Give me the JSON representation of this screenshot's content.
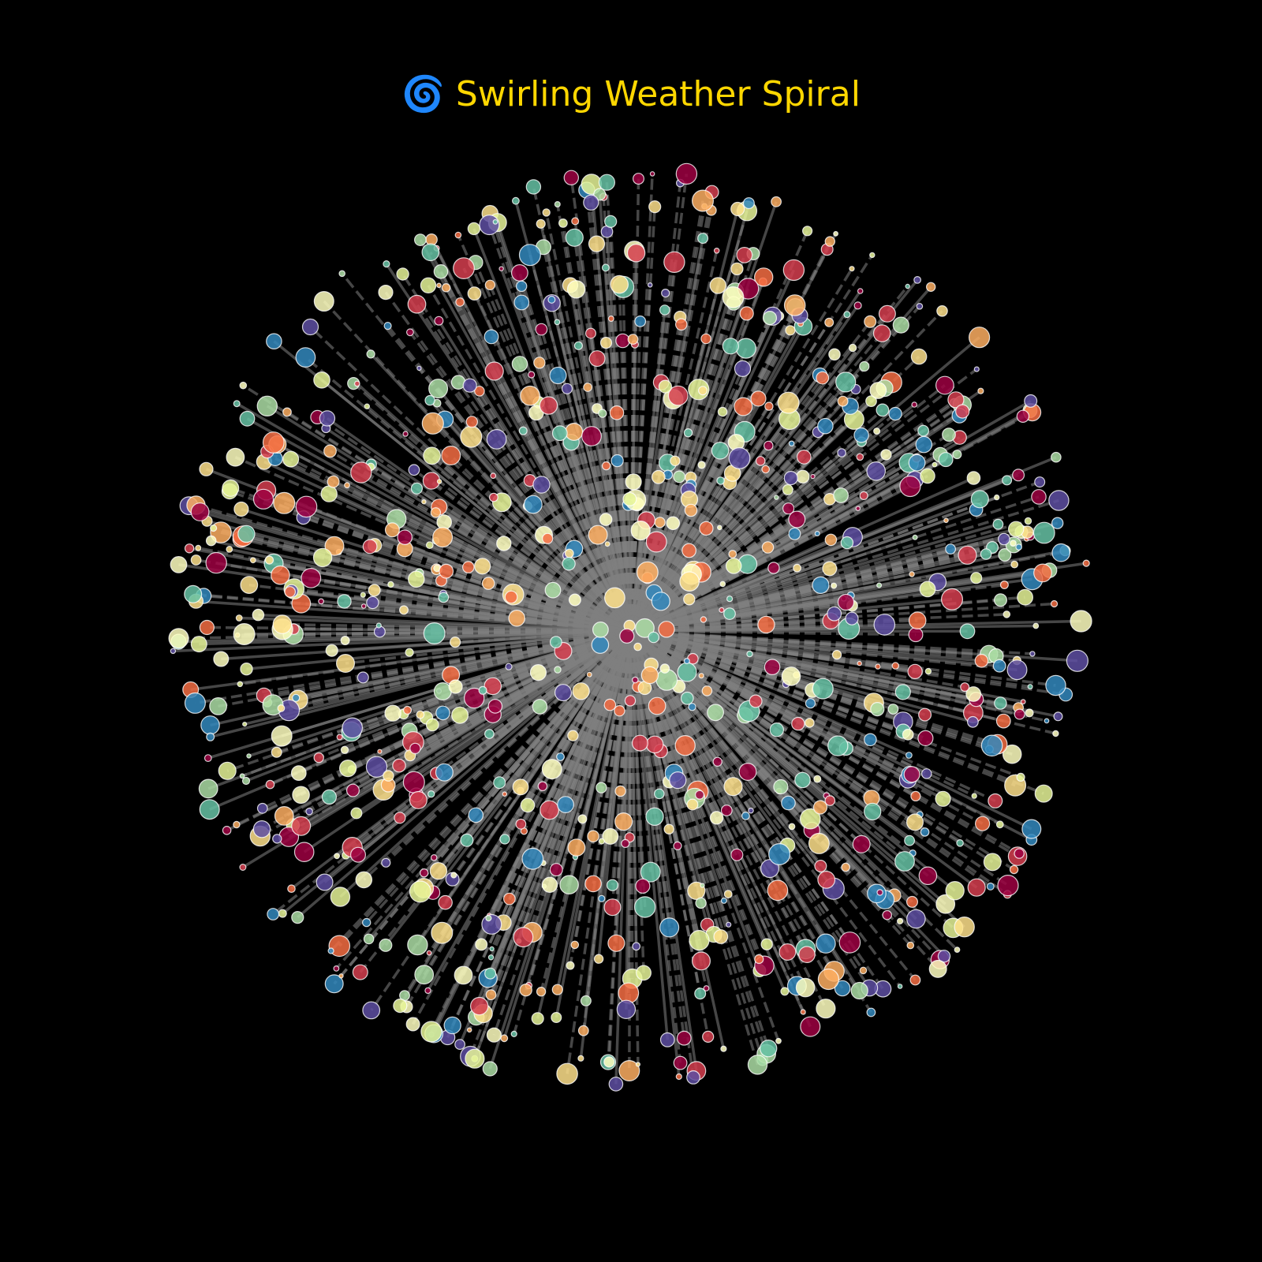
{
  "chart_data": {
    "type": "scatter",
    "title": "🌀 Swirling Weather Spiral",
    "xlabel": "",
    "ylabel": "",
    "axes_visible": false,
    "grid": false,
    "legend": "none",
    "coordinate_system": "polar",
    "radius_range": [
      0,
      1
    ],
    "point_count": 1000,
    "connector_style": "gray dashed lines from center to each point",
    "colormap": [
      "#9E0142",
      "#D53E4F",
      "#F46D43",
      "#FDAE61",
      "#FEE08B",
      "#FFFFBF",
      "#E6F598",
      "#ABDDA4",
      "#66C2A5",
      "#3288BD",
      "#5E4FA2"
    ],
    "styles": {
      "background": "#000000",
      "title_color": "#FFD700",
      "line_color": "#808080",
      "marker_edge_color": "#FFFFFF"
    }
  }
}
